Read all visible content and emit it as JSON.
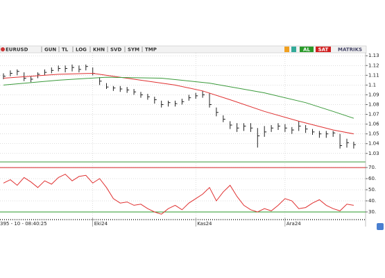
{
  "toolbar": {
    "symbol": "EURUSD",
    "buttons": [
      "GUN",
      "TL",
      "LOG",
      "KHN",
      "SVD",
      "SYM",
      "TMP"
    ],
    "buy": "AL",
    "sell": "SAT",
    "brand": "MATRIKS"
  },
  "status": "395 - 10 - 08:40:25",
  "chart_data": [
    {
      "type": "ohlc",
      "xticks": [
        {
          "value": 13,
          "label": "Eki24"
        },
        {
          "value": 28,
          "label": "Kas24"
        },
        {
          "value": 41,
          "label": "Ara24"
        }
      ],
      "high": [
        1.112,
        1.115,
        1.116,
        1.113,
        1.109,
        1.113,
        1.116,
        1.118,
        1.12,
        1.12,
        1.121,
        1.12,
        1.121,
        1.118,
        1.108,
        1.102,
        1.099,
        1.099,
        1.098,
        1.096,
        1.093,
        1.091,
        1.088,
        1.084,
        1.084,
        1.084,
        1.086,
        1.09,
        1.092,
        1.094,
        1.092,
        1.077,
        1.069,
        1.063,
        1.061,
        1.061,
        1.061,
        1.056,
        1.058,
        1.059,
        1.061,
        1.06,
        1.057,
        1.063,
        1.059,
        1.055,
        1.053,
        1.053,
        1.053,
        1.05,
        1.045,
        1.042
      ],
      "low": [
        1.106,
        1.109,
        1.11,
        1.104,
        1.103,
        1.107,
        1.11,
        1.112,
        1.114,
        1.113,
        1.114,
        1.113,
        1.115,
        1.11,
        1.1,
        1.096,
        1.094,
        1.093,
        1.092,
        1.09,
        1.087,
        1.085,
        1.081,
        1.077,
        1.078,
        1.078,
        1.08,
        1.084,
        1.086,
        1.087,
        1.077,
        1.068,
        1.062,
        1.055,
        1.052,
        1.053,
        1.052,
        1.036,
        1.047,
        1.052,
        1.054,
        1.052,
        1.05,
        1.053,
        1.051,
        1.049,
        1.046,
        1.046,
        1.047,
        1.035,
        1.036,
        1.035
      ],
      "close": [
        1.109,
        1.112,
        1.114,
        1.107,
        1.106,
        1.111,
        1.113,
        1.115,
        1.117,
        1.117,
        1.118,
        1.116,
        1.119,
        1.112,
        1.104,
        1.098,
        1.097,
        1.096,
        1.095,
        1.093,
        1.09,
        1.088,
        1.085,
        1.08,
        1.082,
        1.081,
        1.083,
        1.087,
        1.089,
        1.09,
        1.08,
        1.072,
        1.065,
        1.059,
        1.056,
        1.058,
        1.056,
        1.048,
        1.052,
        1.056,
        1.058,
        1.056,
        1.054,
        1.058,
        1.055,
        1.052,
        1.05,
        1.05,
        1.051,
        1.038,
        1.041,
        1.039
      ],
      "color": "#222222",
      "series": [
        {
          "color": "#e03030",
          "x": [
            0,
            8,
            13,
            16,
            20,
            25,
            29,
            33,
            38,
            43,
            48,
            51
          ],
          "values": [
            1.107,
            1.111,
            1.112,
            1.109,
            1.105,
            1.1,
            1.094,
            1.085,
            1.073,
            1.063,
            1.054,
            1.05
          ]
        },
        {
          "color": "#3a9a3a",
          "x": [
            0,
            8,
            15,
            23,
            30,
            38,
            44,
            48,
            51
          ],
          "values": [
            1.1,
            1.105,
            1.108,
            1.107,
            1.102,
            1.092,
            1.082,
            1.073,
            1.066
          ]
        }
      ],
      "ylim": [
        1.022,
        1.133
      ],
      "yticks": [
        1.03,
        1.04,
        1.05,
        1.06,
        1.07,
        1.08,
        1.09,
        1.1,
        1.11,
        1.12,
        1.13
      ],
      "grid": true
    },
    {
      "type": "line",
      "series": [
        {
          "color": "#e03030",
          "values": [
            56,
            59,
            54,
            61,
            57,
            52,
            58,
            55,
            61,
            64,
            58,
            62,
            63,
            56,
            60,
            52,
            42,
            38,
            39,
            36,
            37,
            33,
            30,
            28,
            33,
            36,
            32,
            38,
            42,
            46,
            52,
            40,
            48,
            54,
            44,
            36,
            32,
            30,
            33,
            31,
            36,
            42,
            40,
            33,
            34,
            38,
            41,
            36,
            33,
            31,
            37,
            36
          ]
        }
      ],
      "ref_lines": [
        {
          "value": 70,
          "color": "#d02020"
        },
        {
          "value": 30,
          "color": "#2a9a2a"
        }
      ],
      "ylim": [
        25.6,
        73.8
      ],
      "yticks": [
        {
          "value": 30,
          "label": "30."
        },
        {
          "value": 40,
          "label": "40."
        },
        {
          "value": 50,
          "label": "50."
        },
        {
          "value": 60,
          "label": "60."
        },
        {
          "value": 70,
          "label": "70."
        }
      ],
      "grid": true
    }
  ]
}
